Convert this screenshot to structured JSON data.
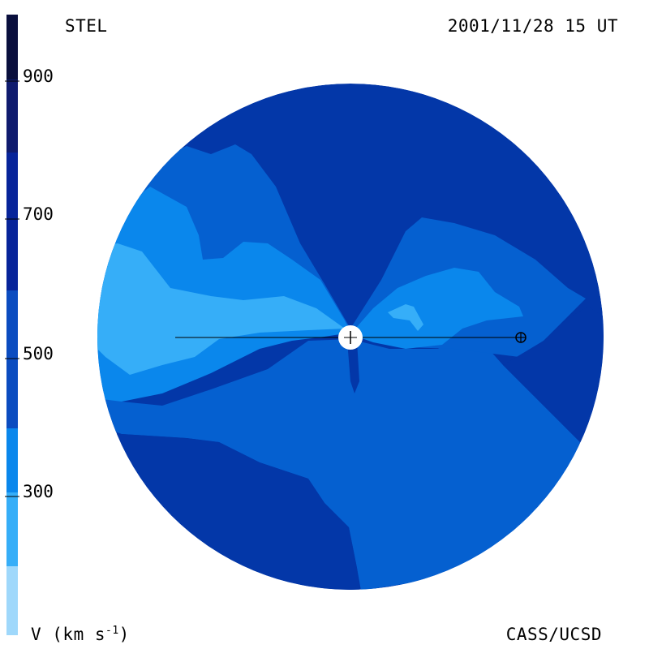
{
  "header": {
    "instrument": "STEL",
    "timestamp": "2001/11/28 15 UT"
  },
  "footer": {
    "unit_label": "V (km s",
    "unit_exponent": "-1",
    "unit_close": ")",
    "credit": "CASS/UCSD"
  },
  "colorbar": {
    "ticks": [
      "900",
      "700",
      "500",
      "300"
    ],
    "colors": [
      "#0a0f3d",
      "#0f1b6e",
      "#002596",
      "#0045b5",
      "#0068d8",
      "#0088ee",
      "#33aaf6",
      "#99d6fb"
    ]
  },
  "map": {
    "colors": {
      "dark": "#0337a8",
      "mid": "#0560d0",
      "light": "#0a87ec",
      "lighter": "#36aef8",
      "sun": "#ffffff"
    }
  }
}
